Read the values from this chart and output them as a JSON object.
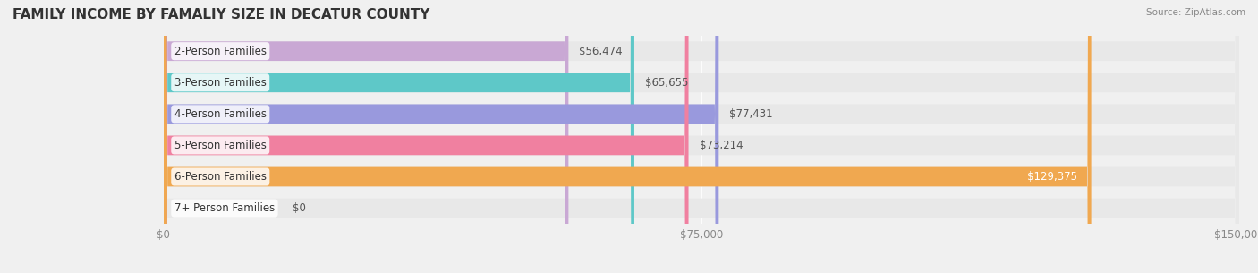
{
  "title": "FAMILY INCOME BY FAMALIY SIZE IN DECATUR COUNTY",
  "source": "Source: ZipAtlas.com",
  "categories": [
    "2-Person Families",
    "3-Person Families",
    "4-Person Families",
    "5-Person Families",
    "6-Person Families",
    "7+ Person Families"
  ],
  "values": [
    56474,
    65655,
    77431,
    73214,
    129375,
    0
  ],
  "bar_colors": [
    "#c9a8d4",
    "#5ec8c8",
    "#9999dd",
    "#f080a0",
    "#f0a850",
    "#f5b8b8"
  ],
  "value_labels": [
    "$56,474",
    "$65,655",
    "$77,431",
    "$73,214",
    "$129,375",
    "$0"
  ],
  "xlim": [
    0,
    150000
  ],
  "xticks": [
    0,
    75000,
    150000
  ],
  "xtick_labels": [
    "$0",
    "$75,000",
    "$150,000"
  ],
  "background_color": "#f0f0f0",
  "bar_background_color": "#e8e8e8",
  "title_fontsize": 11,
  "label_fontsize": 8.5,
  "value_fontsize": 8.5,
  "figsize": [
    14.06,
    3.05
  ]
}
